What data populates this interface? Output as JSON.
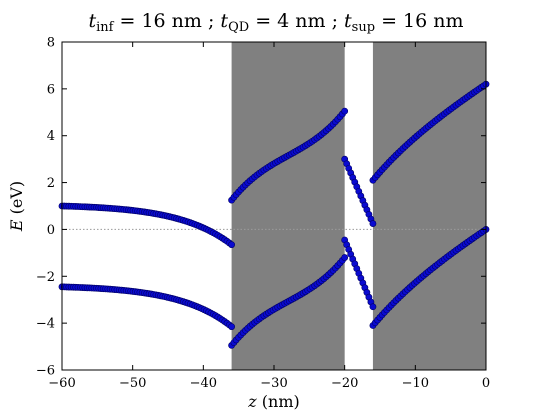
{
  "chart_data": {
    "type": "scatter",
    "title": {
      "parts": [
        {
          "sym": "t",
          "sub": "inf",
          "rest": " = 16 nm ; "
        },
        {
          "sym": "t",
          "sub": "QD",
          "rest": " = 4 nm ; "
        },
        {
          "sym": "t",
          "sub": "sup",
          "rest": " = 16 nm"
        }
      ]
    },
    "xlabel": {
      "sym": "z",
      "unit": " (nm)"
    },
    "ylabel": {
      "sym": "E",
      "unit": " (eV)"
    },
    "xlim": [
      -60,
      0
    ],
    "ylim": [
      -6,
      8
    ],
    "xticks": [
      -60,
      -50,
      -40,
      -30,
      -20,
      -10,
      0
    ],
    "yticks": [
      -6,
      -4,
      -2,
      0,
      2,
      4,
      6,
      8
    ],
    "xtick_labels": [
      "−60",
      "−50",
      "−40",
      "−30",
      "−20",
      "−10",
      "0"
    ],
    "ytick_labels": [
      "−6",
      "−4",
      "−2",
      "0",
      "2",
      "4",
      "6",
      "8"
    ],
    "shaded_regions": [
      {
        "x0": -36,
        "x1": -20
      },
      {
        "x0": -16,
        "x1": 0
      }
    ],
    "zero_line": {
      "y": 0,
      "style": "dotted"
    },
    "marker_color": "#0a0ad0",
    "marker_edge": "#000066",
    "shade_color": "#808080",
    "series": [
      {
        "segments": [
          {
            "x0": -60,
            "x1": -36,
            "profile": "exp_grow",
            "y0": 1.0,
            "y1": -0.65,
            "k": 3.2,
            "lin": -0.35
          },
          {
            "x0": -36,
            "x1": -20,
            "profile": "cubic",
            "y0": 1.25,
            "y1": 5.05
          },
          {
            "x0": -20,
            "x1": -16,
            "profile": "linear",
            "y0": 3.0,
            "y1": 0.25
          },
          {
            "x0": -16,
            "x1": 0,
            "profile": "exp_sat",
            "y0": 2.1,
            "y1": 6.2,
            "k": 2.2,
            "lin": 2.3
          }
        ]
      },
      {
        "segments": [
          {
            "x0": -60,
            "x1": -36,
            "profile": "exp_grow",
            "y0": -2.45,
            "y1": -4.15,
            "k": 3.2,
            "lin": -0.35
          },
          {
            "x0": -36,
            "x1": -20,
            "profile": "cubic",
            "y0": -4.95,
            "y1": -1.2
          },
          {
            "x0": -20,
            "x1": -16,
            "profile": "linear",
            "y0": -0.45,
            "y1": -3.3
          },
          {
            "x0": -16,
            "x1": 0,
            "profile": "exp_sat",
            "y0": -4.1,
            "y1": 0.0,
            "k": 2.2,
            "lin": 2.3
          }
        ]
      }
    ]
  }
}
